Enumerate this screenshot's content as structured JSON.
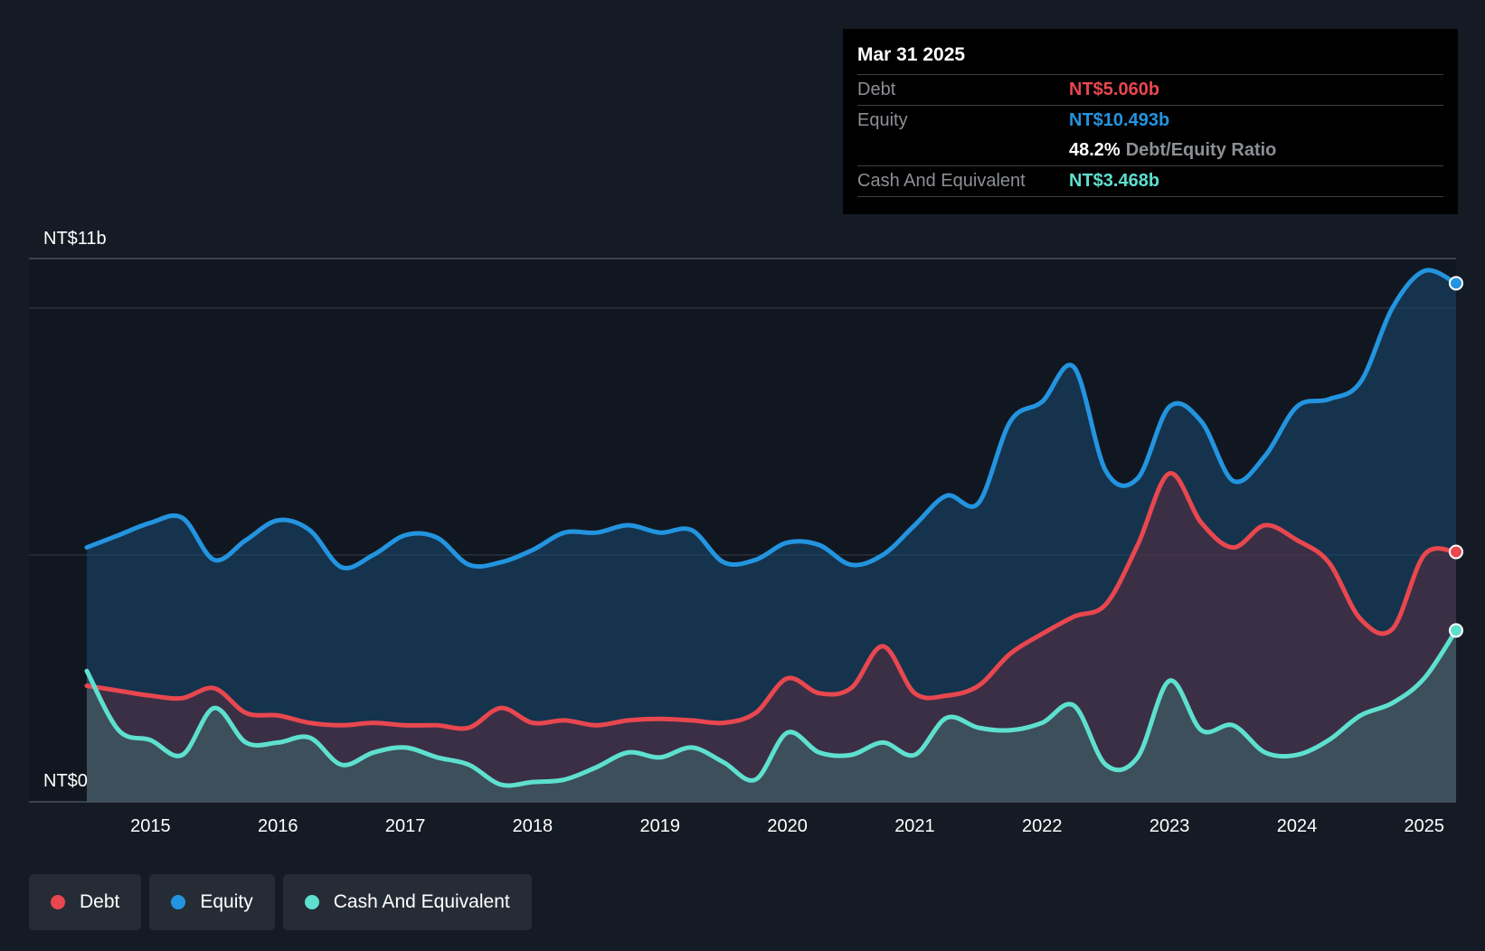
{
  "colors": {
    "background": "#151b24",
    "debt": "#e8474f",
    "equity": "#2394df",
    "cash": "#5ee0cf"
  },
  "tooltip": {
    "date": "Mar 31 2025",
    "debt_label": "Debt",
    "debt_value": "NT$5.060b",
    "equity_label": "Equity",
    "equity_value": "NT$10.493b",
    "ratio_value": "48.2%",
    "ratio_label": "Debt/Equity Ratio",
    "cash_label": "Cash And Equivalent",
    "cash_value": "NT$3.468b"
  },
  "legend": [
    {
      "label": "Debt",
      "color": "#e8474f"
    },
    {
      "label": "Equity",
      "color": "#2394df"
    },
    {
      "label": "Cash And Equivalent",
      "color": "#5ee0cf"
    }
  ],
  "chart_data": {
    "type": "area",
    "title": "",
    "xlabel": "",
    "ylabel": "",
    "ylim": [
      0,
      11
    ],
    "xlim": [
      2014.5,
      2025.25
    ],
    "y_labels": {
      "top": "NT$11b",
      "bottom": "NT$0"
    },
    "xticks": [
      {
        "value": 2015,
        "label": "2015"
      },
      {
        "value": 2016,
        "label": "2016"
      },
      {
        "value": 2017,
        "label": "2017"
      },
      {
        "value": 2018,
        "label": "2018"
      },
      {
        "value": 2019,
        "label": "2019"
      },
      {
        "value": 2020,
        "label": "2020"
      },
      {
        "value": 2021,
        "label": "2021"
      },
      {
        "value": 2022,
        "label": "2022"
      },
      {
        "value": 2023,
        "label": "2023"
      },
      {
        "value": 2024,
        "label": "2024"
      },
      {
        "value": 2025,
        "label": "2025"
      }
    ],
    "series": [
      {
        "name": "Equity",
        "color": "#2394df",
        "points": [
          [
            2014.5,
            5.15
          ],
          [
            2014.75,
            5.4
          ],
          [
            2015.0,
            5.65
          ],
          [
            2015.25,
            5.75
          ],
          [
            2015.5,
            4.9
          ],
          [
            2015.75,
            5.3
          ],
          [
            2016.0,
            5.7
          ],
          [
            2016.25,
            5.5
          ],
          [
            2016.5,
            4.75
          ],
          [
            2016.75,
            5.0
          ],
          [
            2017.0,
            5.4
          ],
          [
            2017.25,
            5.35
          ],
          [
            2017.5,
            4.8
          ],
          [
            2017.75,
            4.85
          ],
          [
            2018.0,
            5.1
          ],
          [
            2018.25,
            5.45
          ],
          [
            2018.5,
            5.45
          ],
          [
            2018.75,
            5.6
          ],
          [
            2019.0,
            5.45
          ],
          [
            2019.25,
            5.5
          ],
          [
            2019.5,
            4.85
          ],
          [
            2019.75,
            4.9
          ],
          [
            2020.0,
            5.25
          ],
          [
            2020.25,
            5.2
          ],
          [
            2020.5,
            4.8
          ],
          [
            2020.75,
            5.0
          ],
          [
            2021.0,
            5.6
          ],
          [
            2021.25,
            6.2
          ],
          [
            2021.5,
            6.05
          ],
          [
            2021.75,
            7.7
          ],
          [
            2022.0,
            8.1
          ],
          [
            2022.25,
            8.8
          ],
          [
            2022.5,
            6.7
          ],
          [
            2022.75,
            6.55
          ],
          [
            2023.0,
            8.0
          ],
          [
            2023.25,
            7.7
          ],
          [
            2023.5,
            6.5
          ],
          [
            2023.75,
            7.0
          ],
          [
            2024.0,
            8.0
          ],
          [
            2024.25,
            8.15
          ],
          [
            2024.5,
            8.5
          ],
          [
            2024.75,
            10.0
          ],
          [
            2025.0,
            10.75
          ],
          [
            2025.25,
            10.5
          ]
        ]
      },
      {
        "name": "Debt",
        "color": "#e8474f",
        "points": [
          [
            2014.5,
            2.35
          ],
          [
            2014.75,
            2.25
          ],
          [
            2015.0,
            2.15
          ],
          [
            2015.25,
            2.1
          ],
          [
            2015.5,
            2.3
          ],
          [
            2015.75,
            1.8
          ],
          [
            2016.0,
            1.75
          ],
          [
            2016.25,
            1.6
          ],
          [
            2016.5,
            1.55
          ],
          [
            2016.75,
            1.6
          ],
          [
            2017.0,
            1.55
          ],
          [
            2017.25,
            1.55
          ],
          [
            2017.5,
            1.5
          ],
          [
            2017.75,
            1.9
          ],
          [
            2018.0,
            1.6
          ],
          [
            2018.25,
            1.65
          ],
          [
            2018.5,
            1.55
          ],
          [
            2018.75,
            1.65
          ],
          [
            2019.0,
            1.68
          ],
          [
            2019.25,
            1.65
          ],
          [
            2019.5,
            1.6
          ],
          [
            2019.75,
            1.8
          ],
          [
            2020.0,
            2.5
          ],
          [
            2020.25,
            2.2
          ],
          [
            2020.5,
            2.3
          ],
          [
            2020.75,
            3.15
          ],
          [
            2021.0,
            2.2
          ],
          [
            2021.25,
            2.15
          ],
          [
            2021.5,
            2.35
          ],
          [
            2021.75,
            3.0
          ],
          [
            2022.0,
            3.4
          ],
          [
            2022.25,
            3.75
          ],
          [
            2022.5,
            4.0
          ],
          [
            2022.75,
            5.2
          ],
          [
            2023.0,
            6.65
          ],
          [
            2023.25,
            5.65
          ],
          [
            2023.5,
            5.15
          ],
          [
            2023.75,
            5.6
          ],
          [
            2024.0,
            5.3
          ],
          [
            2024.25,
            4.85
          ],
          [
            2024.5,
            3.7
          ],
          [
            2024.75,
            3.5
          ],
          [
            2025.0,
            5.0
          ],
          [
            2025.25,
            5.06
          ]
        ]
      },
      {
        "name": "Cash And Equivalent",
        "color": "#5ee0cf",
        "points": [
          [
            2014.5,
            2.65
          ],
          [
            2014.75,
            1.45
          ],
          [
            2015.0,
            1.25
          ],
          [
            2015.25,
            0.95
          ],
          [
            2015.5,
            1.9
          ],
          [
            2015.75,
            1.2
          ],
          [
            2016.0,
            1.2
          ],
          [
            2016.25,
            1.3
          ],
          [
            2016.5,
            0.75
          ],
          [
            2016.75,
            1.0
          ],
          [
            2017.0,
            1.1
          ],
          [
            2017.25,
            0.9
          ],
          [
            2017.5,
            0.75
          ],
          [
            2017.75,
            0.35
          ],
          [
            2018.0,
            0.4
          ],
          [
            2018.25,
            0.45
          ],
          [
            2018.5,
            0.7
          ],
          [
            2018.75,
            1.0
          ],
          [
            2019.0,
            0.9
          ],
          [
            2019.25,
            1.1
          ],
          [
            2019.5,
            0.8
          ],
          [
            2019.75,
            0.45
          ],
          [
            2020.0,
            1.4
          ],
          [
            2020.25,
            1.0
          ],
          [
            2020.5,
            0.95
          ],
          [
            2020.75,
            1.2
          ],
          [
            2021.0,
            0.95
          ],
          [
            2021.25,
            1.7
          ],
          [
            2021.5,
            1.5
          ],
          [
            2021.75,
            1.45
          ],
          [
            2022.0,
            1.6
          ],
          [
            2022.25,
            1.95
          ],
          [
            2022.5,
            0.75
          ],
          [
            2022.75,
            0.9
          ],
          [
            2023.0,
            2.45
          ],
          [
            2023.25,
            1.45
          ],
          [
            2023.5,
            1.55
          ],
          [
            2023.75,
            1.0
          ],
          [
            2024.0,
            0.95
          ],
          [
            2024.25,
            1.25
          ],
          [
            2024.5,
            1.75
          ],
          [
            2024.75,
            2.0
          ],
          [
            2025.0,
            2.5
          ],
          [
            2025.25,
            3.47
          ]
        ]
      }
    ]
  }
}
